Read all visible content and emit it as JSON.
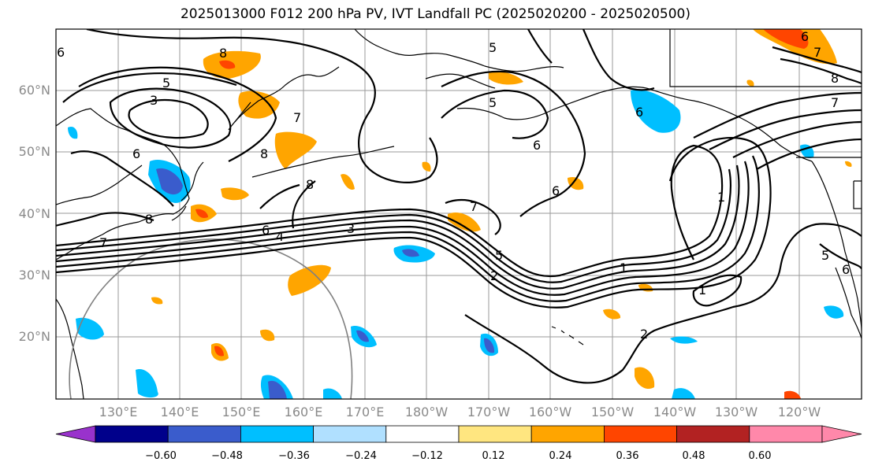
{
  "title": "2025013000 F012 200 hPa PV, IVT Landfall PC (2025020200 - 2025020500)",
  "map": {
    "lat_labels": [
      "60°N",
      "50°N",
      "40°N",
      "30°N",
      "20°N"
    ],
    "lon_labels": [
      "130°E",
      "140°E",
      "150°E",
      "160°E",
      "170°E",
      "180°W",
      "170°W",
      "160°W",
      "150°W",
      "140°W",
      "130°W",
      "120°W"
    ],
    "contour_labels": [
      "5",
      "3",
      "7",
      "8",
      "6",
      "8",
      "8",
      "7",
      "6",
      "4",
      "3",
      "5",
      "5",
      "6",
      "6",
      "7",
      "5",
      "2",
      "1",
      "1",
      "1",
      "2",
      "6",
      "7",
      "8",
      "6",
      "7",
      "6",
      "5",
      "8",
      "6"
    ],
    "colors": {
      "land_outline": "#000000",
      "grid": "#9a9a9a",
      "contour": "#000000",
      "range_circle": "#808080"
    }
  },
  "colorbar": {
    "colors": [
      "#9932cc",
      "#00008b",
      "#3a5ccc",
      "#00bfff",
      "#b0e0ff",
      "#ffffff",
      "#ffe680",
      "#ffa500",
      "#ff4500",
      "#b22222",
      "#ff88aa",
      "#ff88aa"
    ],
    "tick_labels": [
      "−0.60",
      "−0.48",
      "−0.36",
      "−0.24",
      "−0.12",
      "0.12",
      "0.24",
      "0.36",
      "0.48",
      "0.60"
    ]
  }
}
